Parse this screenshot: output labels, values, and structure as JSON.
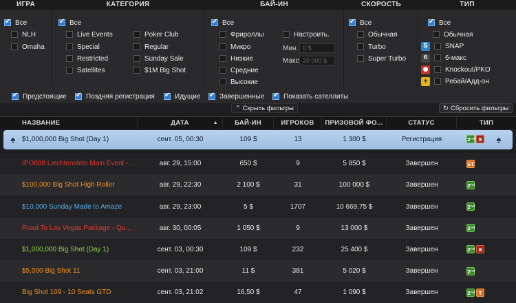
{
  "filters": {
    "headers": {
      "game": "ИГРА",
      "category": "КАТЕГОРИЯ",
      "buyin": "БАЙ-ИН",
      "speed": "СКОРОСТЬ",
      "type": "ТИП"
    },
    "game": {
      "all": "Все",
      "items": [
        "NLH",
        "Omaha"
      ]
    },
    "category": {
      "all": "Все",
      "col1": [
        "Live Events",
        "Special",
        "Restricted",
        "Satellites"
      ],
      "col2": [
        "Poker Club",
        "Regular",
        "Sunday Sale",
        "$1M Big Shot"
      ]
    },
    "buyin": {
      "all": "Все",
      "items": [
        "Фрироллы",
        "Микро",
        "Низкие",
        "Средние",
        "Высокие"
      ],
      "custom": "Настроить.",
      "min_label": "Мин.",
      "min_placeholder": "0 $",
      "max_label": "Макс.",
      "max_placeholder": "20 000 $"
    },
    "speed": {
      "all": "Все",
      "items": [
        "Обычная",
        "Turbo",
        "Super Turbo"
      ]
    },
    "type": {
      "all": "Все",
      "items": [
        "Обычная",
        "SNAP",
        "6-макс",
        "Knockout/PKO",
        "Ребай/Адд-он"
      ]
    },
    "status": [
      "Предстоящие",
      "Поздняя регистрация",
      "Идущие",
      "Завершенные",
      "Показать сателлиты"
    ],
    "hide_filters": "Скрыть фильтры",
    "reset_filters": "Сбросить фильтры"
  },
  "table": {
    "columns": [
      "НАЗВАНИЕ",
      "ДАТА",
      "БАЙ-ИН",
      "ИГРОКОВ",
      "ПРИЗОВОЙ ФО...",
      "СТАТУС",
      "ТИП"
    ],
    "rows": [
      {
        "name": "$1,000,000 Big Shot (Day 1)",
        "date": "сент. 05, 00:30",
        "buyin": "109 $",
        "players": "13",
        "prize": "1 300 $",
        "status": "Регистрация",
        "color": "#0e1a33"
      },
      {
        "name": "IPO888 Liechtenstein Main Event - ...",
        "date": "авг. 29, 15:00",
        "buyin": "650 $",
        "players": "9",
        "prize": "5 850 $",
        "status": "Завершен",
        "color": "#e8332a"
      },
      {
        "name": "$100,000 Big Shot High Roller",
        "date": "авг. 29, 22:30",
        "buyin": "2 100 $",
        "players": "31",
        "prize": "100 000 $",
        "status": "Завершен",
        "color": "#f0901f"
      },
      {
        "name": "$10,000 Sunday Made to Amaze",
        "date": "авг. 29, 23:00",
        "buyin": "5 $",
        "players": "1707",
        "prize": "10 669,75 $",
        "status": "Завершен",
        "color": "#5aaeea"
      },
      {
        "name": "Road To Las Vegas Package - Qu...",
        "date": "авг. 30, 00:05",
        "buyin": "1 050 $",
        "players": "9",
        "prize": "13 000 $",
        "status": "Завершен",
        "color": "#e8332a"
      },
      {
        "name": "$1,000,000 Big Shot (Day 1)",
        "date": "сент. 03, 00:30",
        "buyin": "109 $",
        "players": "232",
        "prize": "25 400 $",
        "status": "Завершен",
        "color": "#8ed24c"
      },
      {
        "name": "$5,000 Big Shot 11",
        "date": "сент. 03, 21:00",
        "buyin": "11 $",
        "players": "381",
        "prize": "5 020 $",
        "status": "Завершен",
        "color": "#f0901f"
      },
      {
        "name": "Big Shot 109 - 10 Seats GTD",
        "date": "сент. 03, 21:02",
        "buyin": "16,50 $",
        "players": "47",
        "prize": "1 090 $",
        "status": "Завершен",
        "color": "#f0901f"
      }
    ]
  },
  "icons": {
    "spade": "spade-icon",
    "badges": [
      "2nd-chance-badge",
      "x-badge",
      "st-badge",
      "t-badge"
    ]
  }
}
